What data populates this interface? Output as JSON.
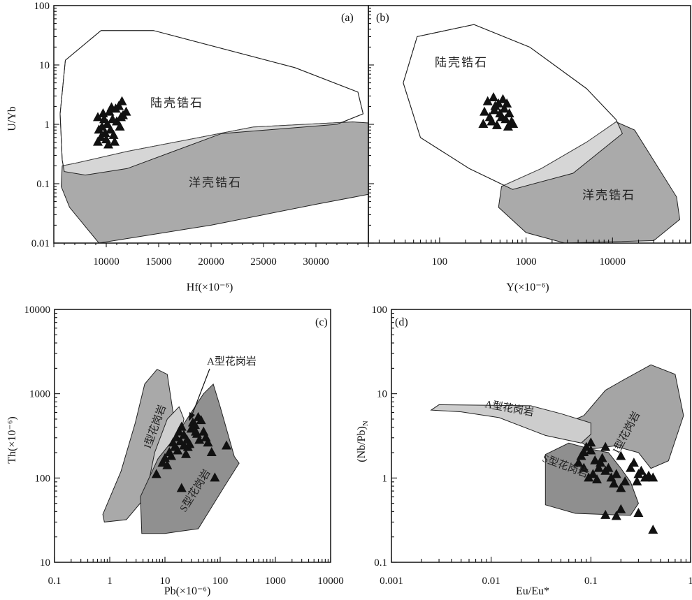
{
  "chart_data": [
    {
      "panel": "(a)",
      "type": "scatter",
      "xlabel": "Hf(×10⁻⁶)",
      "ylabel": "U/Yb",
      "xscale": "linear",
      "yscale": "log",
      "xlim": [
        5000,
        35000
      ],
      "ylim": [
        0.01,
        100
      ],
      "xticks": [
        10000,
        15000,
        20000,
        25000,
        30000
      ],
      "xtick_labels": [
        "10000",
        "15000",
        "20000",
        "25000",
        "30000"
      ],
      "yticks": [
        0.01,
        0.1,
        1,
        10,
        100
      ],
      "ytick_labels": [
        "0.01",
        "0.1",
        "1",
        "10",
        "100"
      ],
      "fields": [
        {
          "label": "陆壳锆石",
          "fill": "#ffffff",
          "polygon": [
            [
              5800,
              0.25
            ],
            [
              5600,
              1.5
            ],
            [
              6100,
              12
            ],
            [
              9500,
              38
            ],
            [
              14500,
              38
            ],
            [
              28000,
              9
            ],
            [
              34000,
              3.5
            ],
            [
              34500,
              1.5
            ],
            [
              32000,
              1.0
            ],
            [
              21000,
              0.7
            ],
            [
              12000,
              0.18
            ],
            [
              8000,
              0.14
            ],
            [
              6000,
              0.16
            ]
          ]
        },
        {
          "label": "洋壳锆石",
          "fill": "#aaaaaa",
          "polygon": [
            [
              5800,
              0.2
            ],
            [
              5700,
              0.09
            ],
            [
              6500,
              0.04
            ],
            [
              9300,
              0.01
            ],
            [
              20000,
              0.02
            ],
            [
              30000,
              0.045
            ],
            [
              39000,
              0.09
            ],
            [
              39500,
              0.4
            ],
            [
              37000,
              1.0
            ],
            [
              33500,
              1.1
            ],
            [
              24000,
              0.9
            ],
            [
              12000,
              0.35
            ],
            [
              7000,
              0.22
            ]
          ]
        }
      ],
      "overlap_fill": "#d6d6d6",
      "marker": "filled-triangle",
      "points": [
        [
          9200,
          1.3
        ],
        [
          9700,
          1.5
        ],
        [
          10300,
          1.6
        ],
        [
          10900,
          1.8
        ],
        [
          11500,
          2.4
        ],
        [
          11200,
          2.0
        ],
        [
          10600,
          1.2
        ],
        [
          10100,
          1.0
        ],
        [
          9600,
          0.9
        ],
        [
          9300,
          0.8
        ],
        [
          9900,
          0.7
        ],
        [
          10400,
          0.8
        ],
        [
          11000,
          1.1
        ],
        [
          11600,
          1.4
        ],
        [
          11900,
          1.6
        ],
        [
          11300,
          0.9
        ],
        [
          10700,
          0.65
        ],
        [
          10000,
          0.55
        ],
        [
          9500,
          0.6
        ],
        [
          9200,
          0.5
        ],
        [
          10200,
          0.45
        ],
        [
          10800,
          0.5
        ],
        [
          9800,
          1.2
        ],
        [
          11400,
          1.3
        ],
        [
          10500,
          1.9
        ]
      ]
    },
    {
      "panel": "(b)",
      "type": "scatter",
      "xlabel": "Y(×10⁻⁶)",
      "ylabel": "",
      "xscale": "log",
      "yscale": "log",
      "xlim": [
        15,
        80000
      ],
      "ylim": [
        0.01,
        100
      ],
      "xticks": [
        100,
        1000,
        10000
      ],
      "xtick_labels": [
        "100",
        "1000",
        "10000"
      ],
      "fields": [
        {
          "label": "陆壳锆石",
          "fill": "#ffffff",
          "polygon": [
            [
              60,
              0.6
            ],
            [
              38,
              5
            ],
            [
              55,
              30
            ],
            [
              250,
              48
            ],
            [
              1100,
              20
            ],
            [
              5000,
              4
            ],
            [
              11000,
              1.2
            ],
            [
              13000,
              0.7
            ],
            [
              3500,
              0.15
            ],
            [
              700,
              0.08
            ],
            [
              220,
              0.18
            ]
          ]
        },
        {
          "label": "洋壳锆石",
          "fill": "#aaaaaa",
          "polygon": [
            [
              520,
              0.09
            ],
            [
              480,
              0.04
            ],
            [
              1000,
              0.015
            ],
            [
              2800,
              0.01
            ],
            [
              30000,
              0.011
            ],
            [
              60000,
              0.025
            ],
            [
              55000,
              0.06
            ],
            [
              18000,
              0.8
            ],
            [
              11000,
              1.1
            ],
            [
              5000,
              0.5
            ],
            [
              1500,
              0.18
            ]
          ]
        }
      ],
      "overlap_fill": "#d6d6d6",
      "marker": "filled-triangle",
      "points": [
        [
          320,
          1.0
        ],
        [
          380,
          1.3
        ],
        [
          430,
          1.7
        ],
        [
          480,
          2.2
        ],
        [
          420,
          2.8
        ],
        [
          360,
          2.4
        ],
        [
          330,
          1.6
        ],
        [
          400,
          1.1
        ],
        [
          460,
          0.95
        ],
        [
          520,
          1.3
        ],
        [
          560,
          1.8
        ],
        [
          600,
          2.2
        ],
        [
          640,
          1.5
        ],
        [
          680,
          1.1
        ],
        [
          620,
          0.9
        ],
        [
          500,
          1.5
        ],
        [
          440,
          2.0
        ],
        [
          540,
          2.6
        ],
        [
          710,
          1.0
        ],
        [
          580,
          1.2
        ]
      ]
    },
    {
      "panel": "(c)",
      "type": "scatter",
      "xlabel": "Pb(×10⁻⁶)",
      "ylabel": "Th(×10⁻⁶)",
      "xscale": "log",
      "yscale": "log",
      "xlim": [
        0.1,
        10000
      ],
      "ylim": [
        10,
        10000
      ],
      "xticks": [
        0.1,
        1,
        10,
        100,
        1000,
        10000
      ],
      "xtick_labels": [
        "0.1",
        "1",
        "10",
        "100",
        "1000",
        "10000"
      ],
      "yticks": [
        10,
        100,
        1000,
        10000
      ],
      "ytick_labels": [
        "10",
        "100",
        "1000",
        "10000"
      ],
      "fields": [
        {
          "label": "I型花岗岩",
          "fill": "#a9a9a9",
          "polygon": [
            [
              0.8,
              30
            ],
            [
              0.75,
              37
            ],
            [
              1.6,
              120
            ],
            [
              2.9,
              450
            ],
            [
              4.3,
              1300
            ],
            [
              7.2,
              1950
            ],
            [
              11,
              1700
            ],
            [
              15,
              450
            ],
            [
              10,
              220
            ],
            [
              6.3,
              95
            ],
            [
              4,
              55
            ],
            [
              2,
              32
            ]
          ]
        },
        {
          "label": "A型花岗岩",
          "fill": "#cfcfcf",
          "polygon": [
            [
              5,
              85
            ],
            [
              6.5,
              200
            ],
            [
              11,
              500
            ],
            [
              18,
              700
            ],
            [
              22,
              500
            ],
            [
              16,
              200
            ],
            [
              10,
              110
            ]
          ]
        },
        {
          "label": "S型花岗岩",
          "fill": "#909090",
          "polygon": [
            [
              3.8,
              22
            ],
            [
              3.6,
              60
            ],
            [
              7.5,
              170
            ],
            [
              15,
              300
            ],
            [
              50,
              1000
            ],
            [
              75,
              1300
            ],
            [
              100,
              700
            ],
            [
              180,
              180
            ],
            [
              220,
              150
            ],
            [
              120,
              80
            ],
            [
              40,
              25
            ],
            [
              10,
              22
            ]
          ]
        }
      ],
      "annotation": {
        "text": "A型花岗岩",
        "xy": [
          20,
          480
        ],
        "xytext": [
          80,
          2700
        ]
      },
      "marker": "filled-triangle",
      "points": [
        [
          7,
          110
        ],
        [
          10,
          170
        ],
        [
          12,
          200
        ],
        [
          14,
          260
        ],
        [
          16,
          300
        ],
        [
          18,
          350
        ],
        [
          20,
          400
        ],
        [
          22,
          320
        ],
        [
          25,
          280
        ],
        [
          28,
          250
        ],
        [
          30,
          380
        ],
        [
          32,
          450
        ],
        [
          35,
          420
        ],
        [
          40,
          520
        ],
        [
          45,
          480
        ],
        [
          50,
          350
        ],
        [
          55,
          300
        ],
        [
          60,
          260
        ],
        [
          15,
          230
        ],
        [
          13,
          180
        ],
        [
          11,
          140
        ],
        [
          9,
          150
        ],
        [
          24,
          190
        ],
        [
          26,
          230
        ],
        [
          19,
          270
        ],
        [
          17,
          210
        ],
        [
          38,
          330
        ],
        [
          42,
          280
        ],
        [
          70,
          200
        ],
        [
          80,
          100
        ],
        [
          130,
          240
        ],
        [
          20,
          75
        ],
        [
          36,
          350
        ],
        [
          22,
          240
        ]
      ]
    },
    {
      "panel": "(d)",
      "type": "scatter",
      "xlabel": "Eu/Eu*",
      "ylabel": "(Nb/Pb)N",
      "xscale": "log",
      "yscale": "log",
      "xlim": [
        0.001,
        1
      ],
      "ylim": [
        0.1,
        100
      ],
      "xticks": [
        0.001,
        0.01,
        0.1,
        1
      ],
      "xtick_labels": [
        "0.001",
        "0.01",
        "0.1",
        "1"
      ],
      "yticks": [
        0.1,
        1,
        10,
        100
      ],
      "ytick_labels": [
        "0.1",
        "1",
        "10",
        "100"
      ],
      "fields": [
        {
          "label": "I型花岗岩",
          "fill": "#a5a5a5",
          "polygon": [
            [
              0.05,
              4.2
            ],
            [
              0.085,
              5.5
            ],
            [
              0.14,
              11
            ],
            [
              0.2,
              14
            ],
            [
              0.4,
              22
            ],
            [
              0.7,
              17
            ],
            [
              0.85,
              5.5
            ],
            [
              0.6,
              1.6
            ],
            [
              0.4,
              1.3
            ],
            [
              0.3,
              2
            ],
            [
              0.17,
              2.4
            ],
            [
              0.1,
              2.2
            ],
            [
              0.07,
              3
            ]
          ]
        },
        {
          "label": "A型花岗岩",
          "fill": "#cdcdcd",
          "polygon": [
            [
              0.0025,
              6.4
            ],
            [
              0.003,
              7.4
            ],
            [
              0.025,
              7.2
            ],
            [
              0.05,
              5.8
            ],
            [
              0.1,
              4.5
            ],
            [
              0.1,
              3.3
            ],
            [
              0.08,
              2.6
            ],
            [
              0.035,
              3.2
            ],
            [
              0.012,
              5.2
            ],
            [
              0.005,
              6.1
            ]
          ]
        },
        {
          "label": "S型花岗岩",
          "fill": "#8f8f8f",
          "polygon": [
            [
              0.035,
              1.9
            ],
            [
              0.035,
              0.48
            ],
            [
              0.07,
              0.38
            ],
            [
              0.25,
              0.36
            ],
            [
              0.3,
              0.5
            ],
            [
              0.25,
              0.9
            ],
            [
              0.2,
              1.3
            ],
            [
              0.15,
              2.0
            ],
            [
              0.1,
              2.2
            ],
            [
              0.06,
              2.6
            ]
          ]
        }
      ],
      "marker": "filled-triangle",
      "points": [
        [
          0.075,
          1.5
        ],
        [
          0.08,
          1.8
        ],
        [
          0.09,
          2.3
        ],
        [
          0.1,
          2.1
        ],
        [
          0.11,
          1.6
        ],
        [
          0.12,
          1.3
        ],
        [
          0.13,
          1.7
        ],
        [
          0.14,
          1.2
        ],
        [
          0.085,
          1.3
        ],
        [
          0.095,
          1.0
        ],
        [
          0.105,
          1.1
        ],
        [
          0.115,
          0.95
        ],
        [
          0.125,
          1.5
        ],
        [
          0.15,
          1.3
        ],
        [
          0.16,
          1.0
        ],
        [
          0.17,
          0.85
        ],
        [
          0.18,
          1.1
        ],
        [
          0.2,
          0.75
        ],
        [
          0.22,
          0.9
        ],
        [
          0.25,
          1.3
        ],
        [
          0.27,
          1.5
        ],
        [
          0.3,
          1.1
        ],
        [
          0.32,
          1.2
        ],
        [
          0.35,
          1.0
        ],
        [
          0.38,
          1.05
        ],
        [
          0.42,
          1.0
        ],
        [
          0.29,
          0.9
        ],
        [
          0.2,
          1.8
        ],
        [
          0.14,
          0.36
        ],
        [
          0.18,
          0.35
        ],
        [
          0.2,
          0.42
        ],
        [
          0.3,
          0.38
        ],
        [
          0.42,
          0.24
        ],
        [
          0.1,
          2.6
        ],
        [
          0.085,
          2.0
        ],
        [
          0.14,
          2.3
        ]
      ]
    }
  ]
}
